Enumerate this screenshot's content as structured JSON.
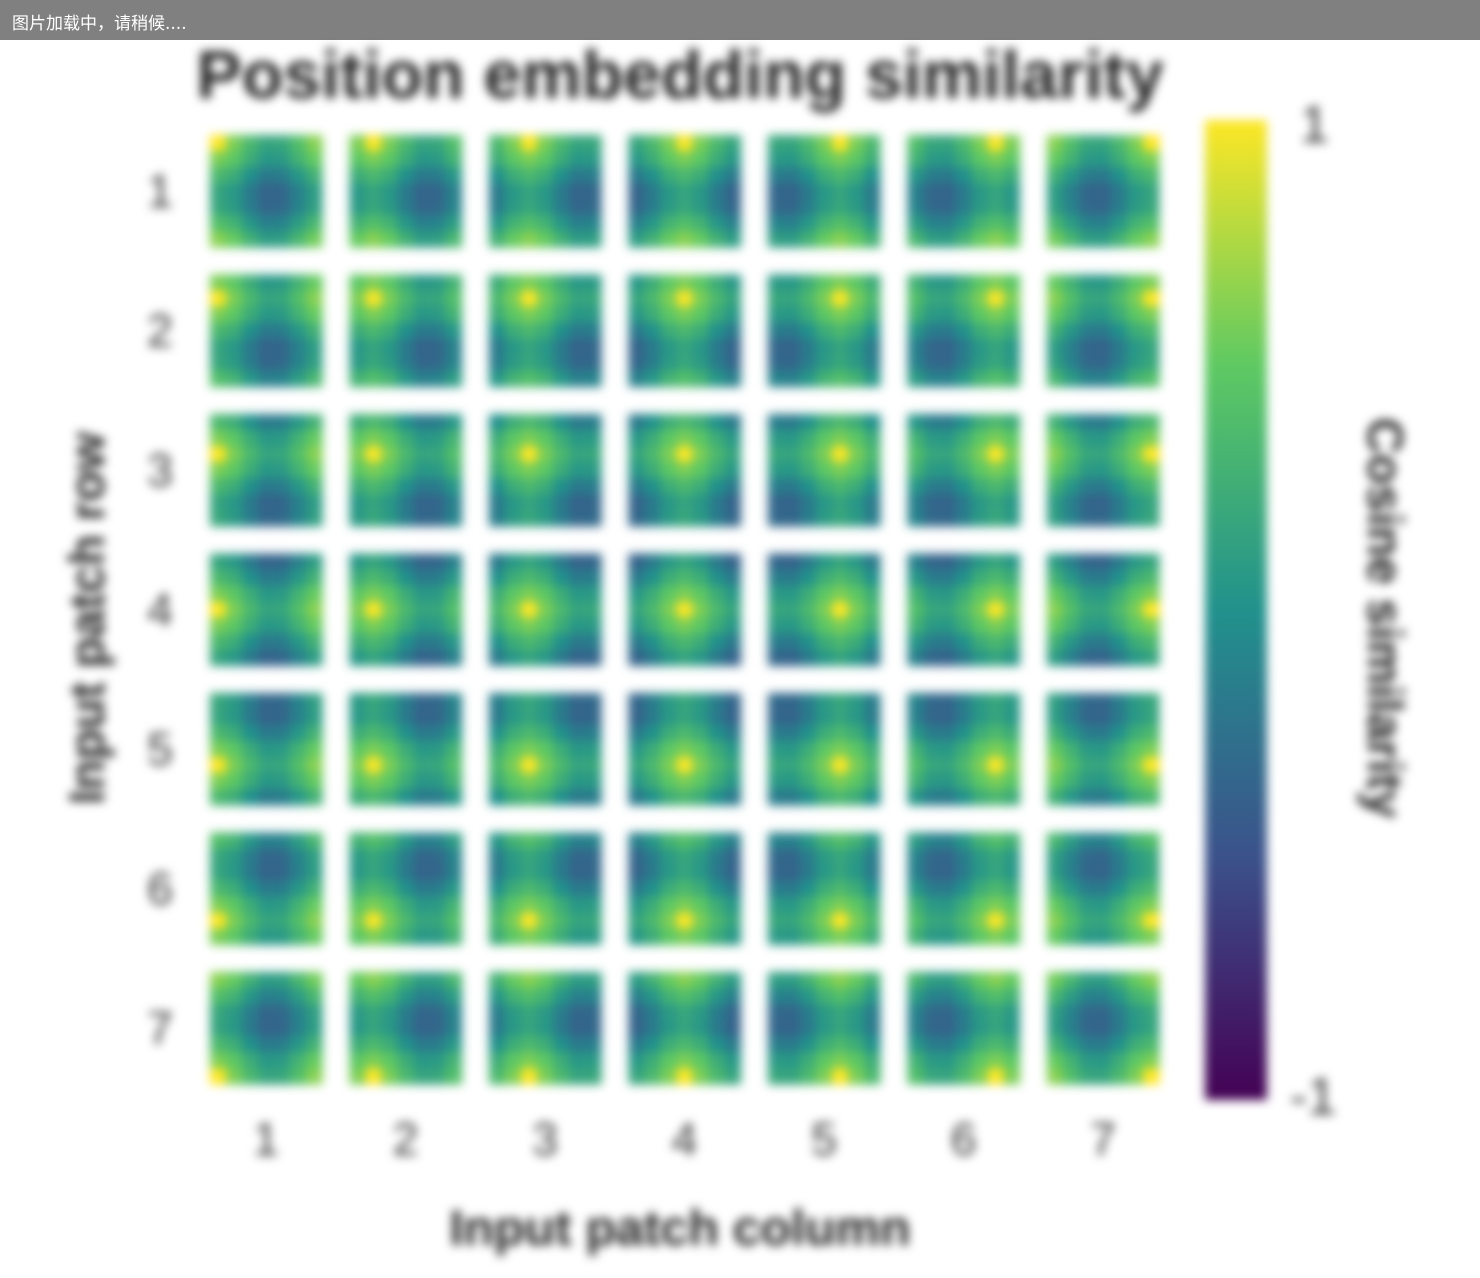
{
  "loading_bar": {
    "text": "图片加载中，请稍候...."
  },
  "chart_data": {
    "type": "heatmap",
    "title": "Position embedding similarity",
    "xlabel": "Input patch column",
    "ylabel": "Input patch row",
    "row_ticks": [
      "1",
      "2",
      "3",
      "4",
      "5",
      "6",
      "7"
    ],
    "col_ticks": [
      "1",
      "2",
      "3",
      "4",
      "5",
      "6",
      "7"
    ],
    "colorbar": {
      "label": "Cosine similarity",
      "min": -1,
      "max": 1,
      "ticks": [
        "1",
        "-1"
      ],
      "colormap": "viridis",
      "colors": [
        "#440154",
        "#3b528b",
        "#21918c",
        "#5ec962",
        "#fde725"
      ]
    },
    "grid": "7x7 patches, each tile a 7x7 similarity map peaking at its own position"
  }
}
